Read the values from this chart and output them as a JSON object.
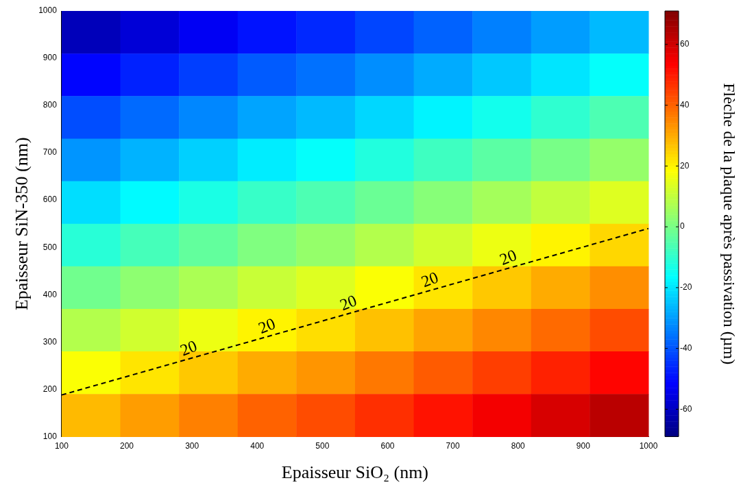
{
  "chart_data": {
    "type": "heatmap",
    "xlabel": "Epaisseur SiO₂ (nm)",
    "ylabel": "Epaisseur SiN-350 (nm)",
    "clabel": "Flèche de la plaque après passivation (µm)",
    "xlim": [
      100,
      1000
    ],
    "ylim": [
      100,
      1000
    ],
    "xticks": [
      100,
      200,
      300,
      400,
      500,
      600,
      700,
      800,
      900,
      1000
    ],
    "yticks": [
      100,
      200,
      300,
      400,
      500,
      600,
      700,
      800,
      900,
      {
        "value": 1000,
        "label": "1000"
      }
    ],
    "clim": [
      -69,
      71
    ],
    "cticks": [
      -60,
      -40,
      -20,
      0,
      20,
      40,
      60
    ],
    "cells": [
      [
        -61,
        -57,
        -53,
        -49,
        -46,
        -42,
        -38,
        -34,
        -30,
        -26
      ],
      [
        -51,
        -47,
        -43,
        -39,
        -36,
        -32,
        -28,
        -24,
        -20,
        -16
      ],
      [
        -41,
        -37,
        -33,
        -29,
        -26,
        -22,
        -18,
        -14,
        -10,
        -6
      ],
      [
        -31,
        -27,
        -23,
        -19,
        -16,
        -12,
        -8,
        -4,
        0,
        4
      ],
      [
        -21,
        -17,
        -13,
        -9,
        -6,
        -2,
        2,
        6,
        10,
        14
      ],
      [
        -11,
        -7,
        -3,
        1,
        4,
        8,
        12,
        16,
        20,
        24
      ],
      [
        -1,
        3,
        7,
        11,
        14,
        18,
        22,
        26,
        30,
        34
      ],
      [
        8,
        12,
        16,
        20,
        23,
        27,
        31,
        35,
        39,
        43
      ],
      [
        18,
        22,
        26,
        30,
        33,
        37,
        41,
        45,
        49,
        53
      ],
      [
        28,
        32,
        36,
        40,
        43,
        47,
        51,
        55,
        59,
        63
      ]
    ],
    "series": [
      {
        "type": "line",
        "color": "#000000",
        "line_style": "dashed",
        "x": [
          100,
          1000
        ],
        "values": [
          188,
          540
        ]
      }
    ],
    "annotations": [
      {
        "text": "20",
        "x": 300,
        "y": 266
      },
      {
        "text": "20",
        "x": 420,
        "y": 313
      },
      {
        "text": "20",
        "x": 545,
        "y": 362
      },
      {
        "text": "20",
        "x": 670,
        "y": 411
      },
      {
        "text": "20",
        "x": 790,
        "y": 458
      }
    ],
    "grid": false,
    "legend": false
  }
}
